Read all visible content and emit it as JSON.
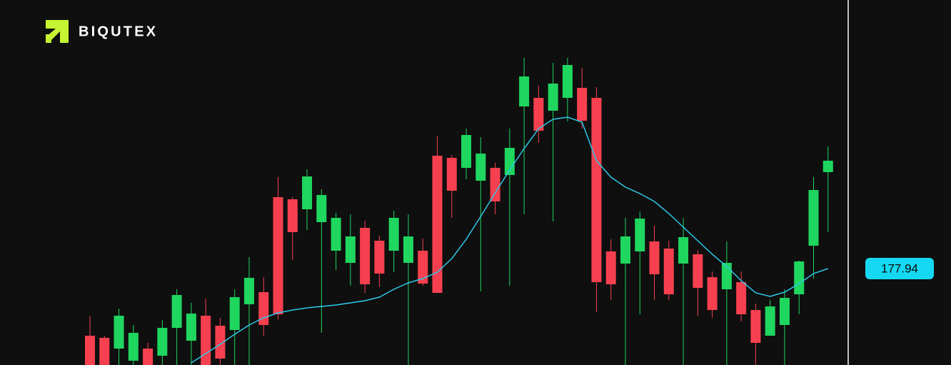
{
  "logo_text": "BIQUTEX",
  "chart_data": {
    "type": "candlestick",
    "ylim": [
      164.44,
      215.54
    ],
    "up_color": "#1fd65f",
    "down_color": "#f7404f",
    "open": [
      168.54,
      168.24,
      166.74,
      165.04,
      166.74,
      165.74,
      169.64,
      167.84,
      171.34,
      169.94,
      169.34,
      172.94,
      174.64,
      187.94,
      187.64,
      186.24,
      184.44,
      180.44,
      178.74,
      183.64,
      181.84,
      180.44,
      178.74,
      180.44,
      193.74,
      193.44,
      192.04,
      190.24,
      192.04,
      191.04,
      200.64,
      201.84,
      200.04,
      201.84,
      203.24,
      201.84,
      180.34,
      178.64,
      180.34,
      181.74,
      180.74,
      178.64,
      179.94,
      176.74,
      175.04,
      176.04,
      172.14,
      168.54,
      170.04,
      174.34,
      181.14,
      191.44
    ],
    "high": [
      171.34,
      168.54,
      172.34,
      170.04,
      167.54,
      170.74,
      175.04,
      173.14,
      173.74,
      171.04,
      175.04,
      179.54,
      176.74,
      190.74,
      187.94,
      191.84,
      189.04,
      185.74,
      185.54,
      184.64,
      182.54,
      186.04,
      185.54,
      182.14,
      196.54,
      193.84,
      197.54,
      196.34,
      192.74,
      197.54,
      207.44,
      203.54,
      206.74,
      207.44,
      206.04,
      203.34,
      182.04,
      185.04,
      185.94,
      183.94,
      181.84,
      185.04,
      180.54,
      177.54,
      181.74,
      177.54,
      173.04,
      173.54,
      175.04,
      179.04,
      190.74,
      195.04
    ],
    "low": [
      164.04,
      164.04,
      164.04,
      164.04,
      164.04,
      164.04,
      164.04,
      164.04,
      164.04,
      164.04,
      164.04,
      164.04,
      168.54,
      170.84,
      179.14,
      183.34,
      168.94,
      177.74,
      175.54,
      174.54,
      175.34,
      177.44,
      164.04,
      175.54,
      174.54,
      185.04,
      190.44,
      174.74,
      185.54,
      175.54,
      185.54,
      195.54,
      184.54,
      198.54,
      197.54,
      171.84,
      173.54,
      164.04,
      171.54,
      173.54,
      173.54,
      164.04,
      171.34,
      171.04,
      164.04,
      170.54,
      164.04,
      168.54,
      164.04,
      171.54,
      176.54,
      183.04
    ],
    "close": [
      164.44,
      164.44,
      171.34,
      168.94,
      164.44,
      169.64,
      174.24,
      171.64,
      164.44,
      165.34,
      173.94,
      176.64,
      170.04,
      171.54,
      183.04,
      190.84,
      188.24,
      185.04,
      182.44,
      175.74,
      177.24,
      185.04,
      182.44,
      175.84,
      174.54,
      188.84,
      196.64,
      194.04,
      187.34,
      194.84,
      204.84,
      197.24,
      203.84,
      206.44,
      198.64,
      176.04,
      175.74,
      182.44,
      184.94,
      177.14,
      174.34,
      182.34,
      175.24,
      172.14,
      178.74,
      171.54,
      167.54,
      172.64,
      173.84,
      178.94,
      188.94,
      193.04
    ],
    "ma": {
      "color": "#2cc9ea",
      "values": [
        null,
        null,
        null,
        null,
        null,
        null,
        null,
        164.74,
        166.04,
        167.34,
        168.74,
        170.04,
        171.04,
        171.74,
        172.14,
        172.44,
        172.64,
        172.84,
        173.14,
        173.44,
        173.94,
        175.04,
        175.94,
        176.54,
        177.44,
        179.34,
        182.04,
        185.24,
        188.54,
        191.74,
        194.74,
        197.54,
        198.84,
        199.14,
        198.44,
        193.04,
        190.74,
        189.34,
        188.44,
        187.34,
        185.64,
        183.74,
        181.84,
        179.94,
        178.24,
        176.24,
        174.54,
        174.04,
        174.64,
        175.84,
        177.24,
        177.94
      ]
    },
    "last_price": 177.94,
    "last_price_color": "#15d9f2"
  }
}
